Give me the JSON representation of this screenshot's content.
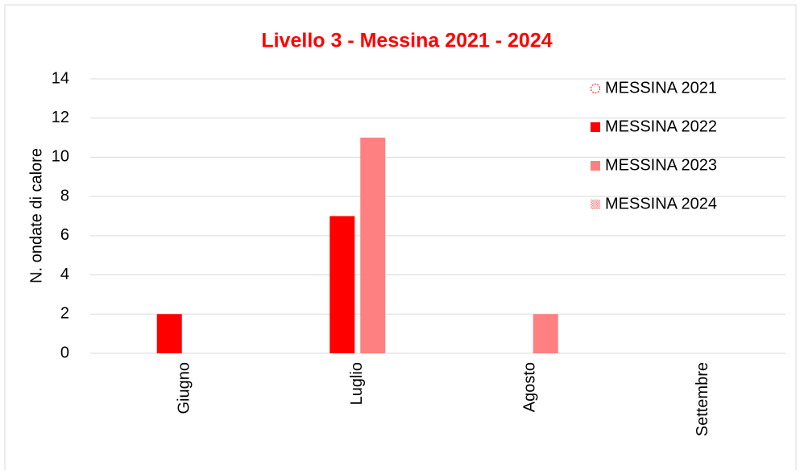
{
  "chart_data": {
    "type": "bar",
    "title": "Livello 3 - Messina 2021 - 2024",
    "y_label": "N. ondate di calore",
    "categories": [
      "Giugno",
      "Luglio",
      "Agosto",
      "Settembre"
    ],
    "series": [
      {
        "name": "MESSINA 2021",
        "color": "#ff0000",
        "style": "outline",
        "values": [
          0,
          0,
          0,
          0
        ]
      },
      {
        "name": "MESSINA 2022",
        "color": "#ff0000",
        "style": "solid",
        "values": [
          2,
          7,
          0,
          0
        ]
      },
      {
        "name": "MESSINA 2023",
        "color": "#ff8080",
        "style": "solid",
        "values": [
          0,
          11,
          2,
          0
        ]
      },
      {
        "name": "MESSINA 2024",
        "color": "#ff8080",
        "style": "dotted",
        "values": [
          0,
          0,
          0,
          0
        ]
      }
    ],
    "ylim": [
      0,
      14
    ],
    "yticks": [
      0,
      2,
      4,
      6,
      8,
      10,
      12,
      14
    ],
    "grid": true,
    "legend": "top-right"
  }
}
